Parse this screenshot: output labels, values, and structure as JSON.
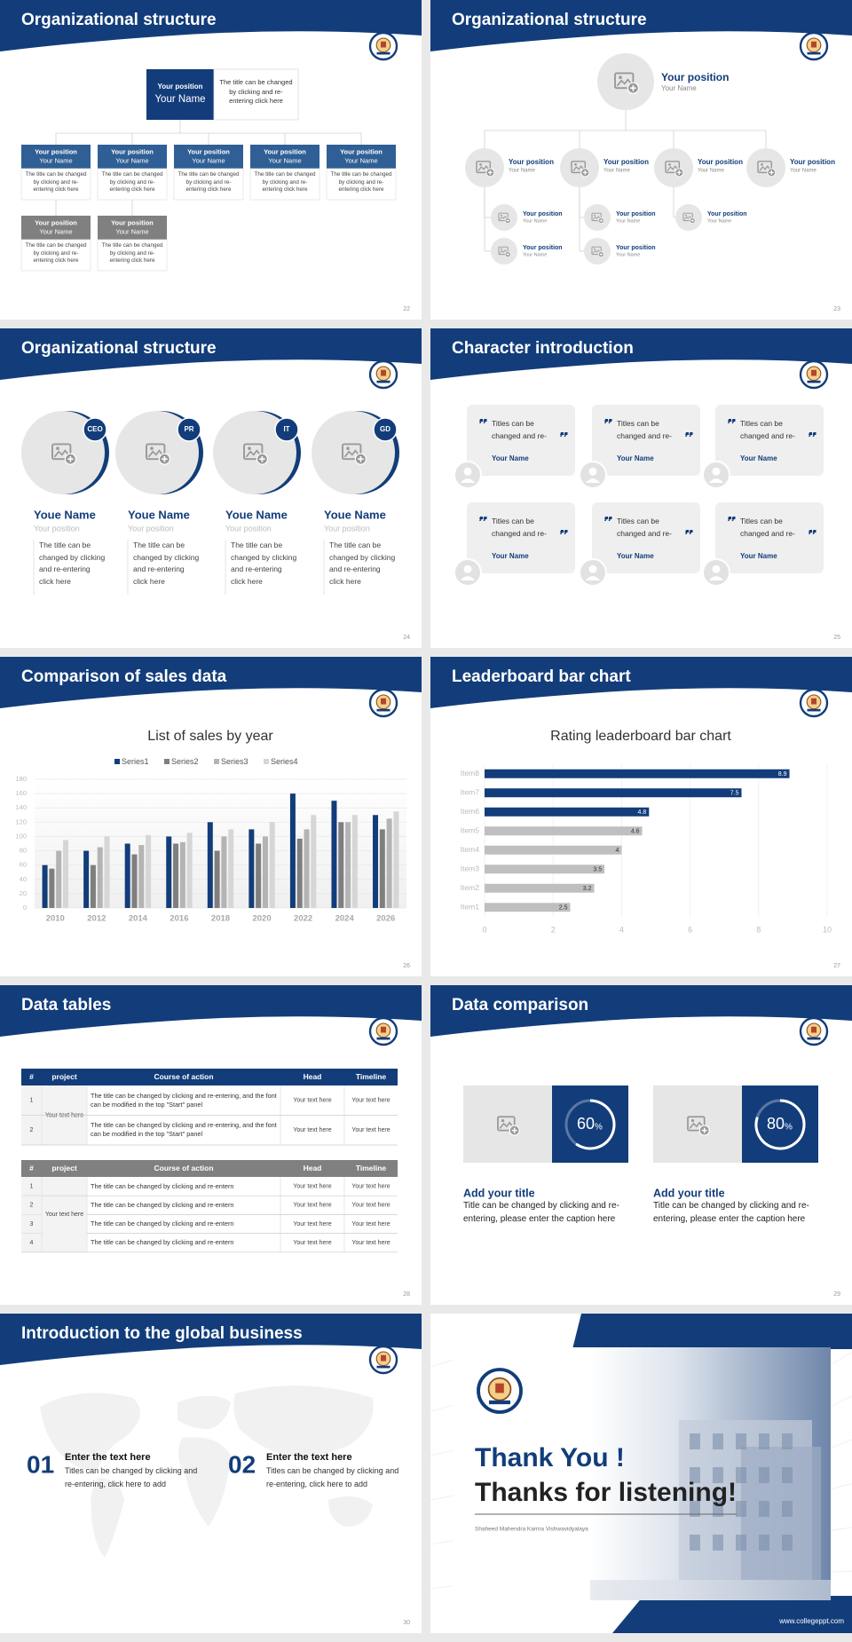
{
  "slides": [
    {
      "title": "Organizational structure",
      "page": "22",
      "top": {
        "position": "Your position",
        "name": "Your Name",
        "text": "The title can be changed by clicking and re-entering click here"
      },
      "members": [
        {
          "position": "Your position",
          "name": "Your Name",
          "text": "The title can be changed by clicking and re-entering click here"
        },
        {
          "position": "Your position",
          "name": "Your Name",
          "text": "The title can be changed by clicking and re-entering click here"
        },
        {
          "position": "Your position",
          "name": "Your Name",
          "text": "The title can be changed by clicking and re-entering click here"
        },
        {
          "position": "Your position",
          "name": "Your Name",
          "text": "The title can be changed by clicking and re-entering click here"
        },
        {
          "position": "Your position",
          "name": "Your Name",
          "text": "The title can be changed by clicking and re-entering click here"
        },
        {
          "position": "Your position",
          "name": "Your Name",
          "text": "The title can be changed by clicking and re-entering click here"
        },
        {
          "position": "Your position",
          "name": "Your Name",
          "text": "The title can be changed by clicking and re-entering click here"
        }
      ]
    },
    {
      "title": "Organizational structure",
      "page": "23",
      "top": {
        "position": "Your position",
        "name": "Your Name"
      },
      "members": [
        {
          "position": "Your position",
          "name": "Your Name"
        },
        {
          "position": "Your position",
          "name": "Your Name"
        },
        {
          "position": "Your position",
          "name": "Your Name"
        },
        {
          "position": "Your position",
          "name": "Your Name"
        }
      ],
      "subs": [
        {
          "position": "Your position",
          "name": "Your Name"
        },
        {
          "position": "Your position",
          "name": "Your Name"
        },
        {
          "position": "Your position",
          "name": "Your Name"
        },
        {
          "position": "Your position",
          "name": "Your Name"
        },
        {
          "position": "Your position",
          "name": "Your Name"
        }
      ]
    },
    {
      "title": "Organizational structure",
      "page": "24",
      "cards": [
        {
          "tag": "CEO",
          "name": "Youe Name",
          "position": "Your position",
          "text": "The title can be changed by clicking and re-entering click here"
        },
        {
          "tag": "PR",
          "name": "Youe Name",
          "position": "Your position",
          "text": "The title can be changed by clicking and re-entering click here"
        },
        {
          "tag": "IT",
          "name": "Youe Name",
          "position": "Your position",
          "text": "The title can be changed by clicking and re-entering click here"
        },
        {
          "tag": "GD",
          "name": "Youe Name",
          "position": "Your position",
          "text": "The title can be changed by clicking and re-entering click here"
        }
      ]
    },
    {
      "title": "Character introduction",
      "page": "25",
      "cards": [
        {
          "text": "Titles can be changed and re-entering",
          "name": "Your Name"
        },
        {
          "text": "Titles can be changed and re-entering",
          "name": "Your Name"
        },
        {
          "text": "Titles can be changed and re-entering",
          "name": "Your Name"
        },
        {
          "text": "Titles can be changed and re-entering",
          "name": "Your Name"
        },
        {
          "text": "Titles can be changed and re-entering",
          "name": "Your Name"
        },
        {
          "text": "Titles can be changed and re-entering",
          "name": "Your Name"
        }
      ]
    },
    {
      "title": "Comparison of sales data",
      "page": "26"
    },
    {
      "title": "Leaderboard bar chart",
      "page": "27"
    },
    {
      "title": "Data tables",
      "page": "28",
      "tables": [
        {
          "header": [
            "#",
            "project",
            "Course of action",
            "Head",
            "Timeline"
          ],
          "project": "Your text here",
          "rows": [
            [
              "1",
              "The title can be changed by clicking and re-entering, and the font can be modified in the top \"Start\" panel",
              "Your text here",
              "Your text here"
            ],
            [
              "2",
              "The title can be changed by clicking and re-entering, and the font can be modified in the top \"Start\" panel",
              "Your text here",
              "Your text here"
            ]
          ]
        },
        {
          "header": [
            "#",
            "project",
            "Course of action",
            "Head",
            "Timeline"
          ],
          "project": "Your text here",
          "rows": [
            [
              "1",
              "The title can be changed by clicking and re-entern",
              "Your text here",
              "Your text here"
            ],
            [
              "2",
              "The title can be changed by clicking and re-entern",
              "Your text here",
              "Your text here"
            ],
            [
              "3",
              "The title can be changed by clicking and re-entern",
              "Your text here",
              "Your text here"
            ],
            [
              "4",
              "The title can be changed by clicking and re-entern",
              "Your text here",
              "Your text here"
            ]
          ]
        }
      ]
    },
    {
      "title": "Data comparison",
      "page": "29",
      "items": [
        {
          "value": 60,
          "unit": "%",
          "title": "Add your title",
          "text": "Title can be changed by clicking and re-entering, please enter the caption here"
        },
        {
          "value": 80,
          "unit": "%",
          "title": "Add your title",
          "text": "Title can be changed by clicking and re-entering, please enter the caption here"
        }
      ]
    },
    {
      "title": "Introduction to the global business",
      "page": "30",
      "items": [
        {
          "number": "01",
          "title": "Enter the text here",
          "text": "Titles can be changed by clicking and re-entering, click here to add"
        },
        {
          "number": "02",
          "title": "Enter the text here",
          "text": "Titles can be changed by clicking and re-entering, click here to add"
        }
      ]
    },
    {
      "heading": "Thank You !",
      "subheading": "Thanks for listening!",
      "school": "Shaheed Mahendra Karma Vishwavidyalaya",
      "url": "www.collegeppt.com"
    }
  ],
  "chart_data": [
    {
      "type": "bar",
      "title": "List of sales by year",
      "categories": [
        "2010",
        "2012",
        "2014",
        "2016",
        "2018",
        "2020",
        "2022",
        "2024",
        "2026"
      ],
      "series": [
        {
          "name": "Series1",
          "color": "#123d7a",
          "values": [
            60,
            80,
            90,
            100,
            120,
            110,
            160,
            150,
            130
          ]
        },
        {
          "name": "Series2",
          "color": "#7f7f7f",
          "values": [
            55,
            60,
            75,
            90,
            80,
            90,
            97,
            120,
            110
          ]
        },
        {
          "name": "Series3",
          "color": "#b4b4b4",
          "values": [
            80,
            85,
            88,
            92,
            100,
            100,
            110,
            120,
            125
          ]
        },
        {
          "name": "Series4",
          "color": "#d6d6d6",
          "values": [
            95,
            100,
            102,
            105,
            110,
            120,
            130,
            130,
            135
          ]
        }
      ],
      "ylim": [
        0,
        180
      ],
      "yticks": [
        0,
        20,
        40,
        60,
        80,
        100,
        120,
        140,
        160,
        180
      ],
      "grid": true,
      "legend": "top"
    },
    {
      "type": "bar",
      "orientation": "horizontal",
      "title": "Rating leaderboard bar chart",
      "categories": [
        "Item1",
        "Item2",
        "Item3",
        "Item4",
        "Item5",
        "Item6",
        "Item7",
        "Item8"
      ],
      "values": [
        2.5,
        3.2,
        3.5,
        4,
        4.6,
        4.8,
        7.5,
        8.9
      ],
      "colors": [
        "#bfbfbf",
        "#bfbfbf",
        "#bfbfbf",
        "#bfbfbf",
        "#bfbfbf",
        "#123d7a",
        "#123d7a",
        "#123d7a"
      ],
      "xlim": [
        0,
        10
      ],
      "xticks": [
        0,
        2,
        4,
        6,
        8,
        10
      ],
      "grid": true
    }
  ]
}
